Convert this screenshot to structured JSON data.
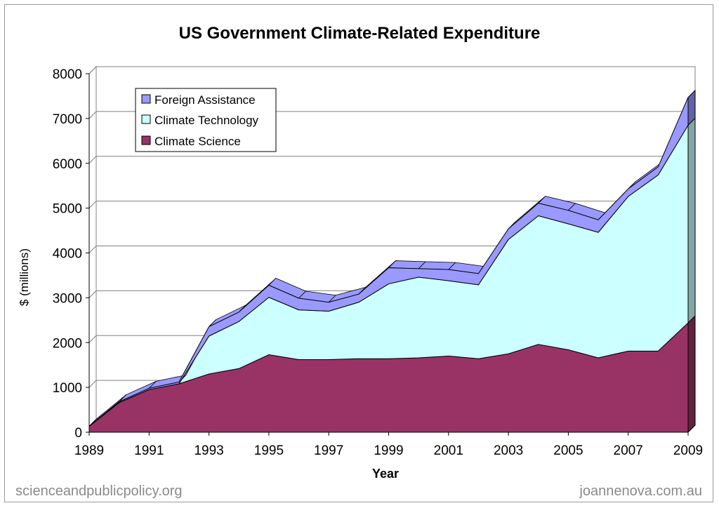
{
  "chart_data": {
    "type": "area",
    "stacked": true,
    "title": "US Government Climate-Related Expenditure",
    "xlabel": "Year",
    "ylabel": "$ (millions)",
    "ylim": [
      0,
      8000
    ],
    "yticks": [
      0,
      1000,
      2000,
      3000,
      4000,
      5000,
      6000,
      7000,
      8000
    ],
    "x": [
      1989,
      1990,
      1991,
      1992,
      1993,
      1994,
      1995,
      1996,
      1997,
      1998,
      1999,
      2000,
      2001,
      2002,
      2003,
      2004,
      2005,
      2006,
      2007,
      2008,
      2009
    ],
    "xticks": [
      1989,
      1991,
      1993,
      1995,
      1997,
      1999,
      2001,
      2003,
      2005,
      2007,
      2009
    ],
    "grid": true,
    "legend_position": "top-left",
    "series": [
      {
        "name": "Climate Science",
        "color": "#993366",
        "values": [
          134,
          660,
          950,
          1080,
          1300,
          1420,
          1730,
          1620,
          1620,
          1640,
          1640,
          1660,
          1700,
          1640,
          1750,
          1960,
          1840,
          1660,
          1810,
          1810,
          2440
        ]
      },
      {
        "name": "Climate Technology",
        "color": "#CCFFFF",
        "values": [
          0,
          0,
          0,
          0,
          845,
          1050,
          1280,
          1110,
          1080,
          1260,
          1670,
          1800,
          1680,
          1650,
          2550,
          2870,
          2810,
          2800,
          3450,
          3930,
          4410
        ]
      },
      {
        "name": "Foreign Assistance",
        "color": "#9999FF",
        "values": [
          0,
          20,
          30,
          40,
          210,
          210,
          270,
          260,
          200,
          180,
          360,
          190,
          250,
          250,
          240,
          280,
          300,
          280,
          170,
          180,
          620
        ]
      }
    ]
  },
  "credits": {
    "left": "scienceandpublicpolicy.org",
    "right": "joannenova.com.au"
  }
}
